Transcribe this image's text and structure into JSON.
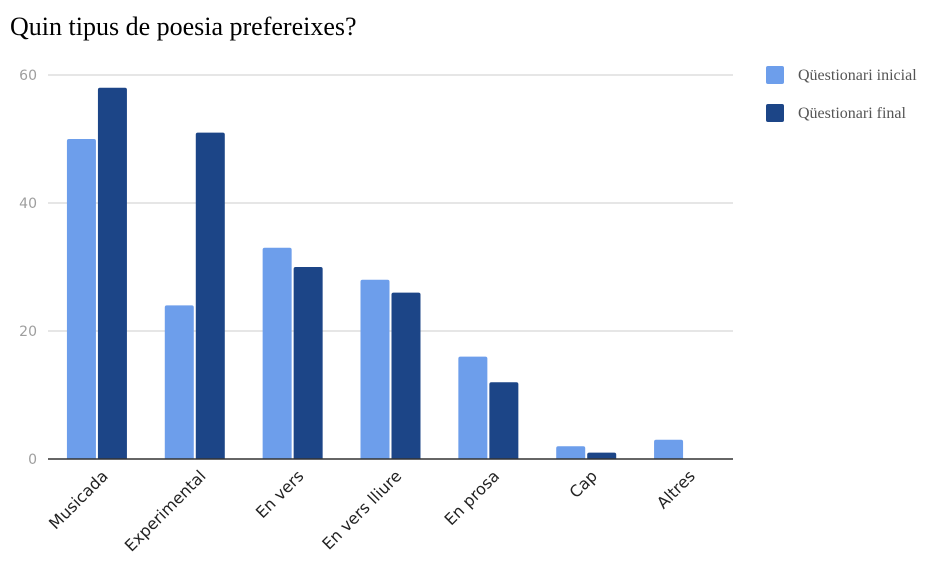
{
  "chart_data": {
    "type": "bar",
    "title": "Quin tipus de poesia prefereixes?",
    "xlabel": "",
    "ylabel": "",
    "categories": [
      "Musicada",
      "Experimental",
      "En vers",
      "En vers lliure",
      "En prosa",
      "Cap",
      "Altres"
    ],
    "series": [
      {
        "name": "Qüestionari inicial",
        "color": "#6d9eeb",
        "values": [
          50,
          24,
          33,
          28,
          16,
          2,
          3
        ]
      },
      {
        "name": "Qüestionari final",
        "color": "#1c4587",
        "values": [
          58,
          51,
          30,
          26,
          12,
          1,
          0
        ]
      }
    ],
    "ylim": [
      0,
      60
    ],
    "yticks": [
      0,
      20,
      40,
      60
    ],
    "grid": true,
    "legend_position": "right"
  }
}
